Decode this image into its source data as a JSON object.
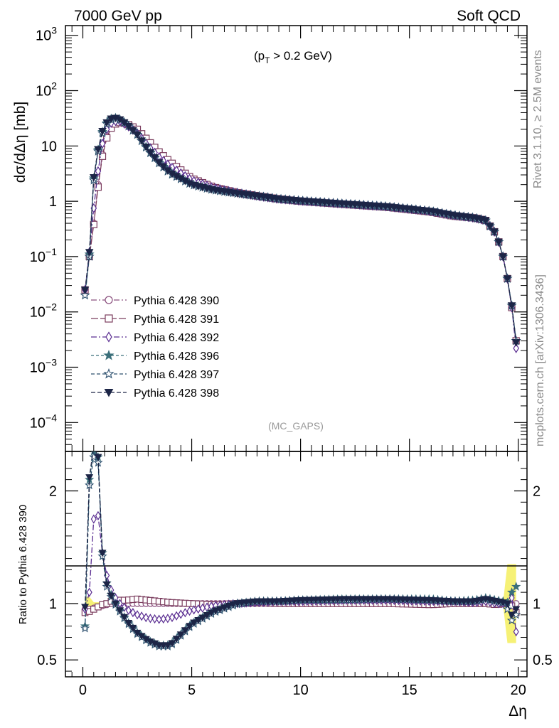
{
  "header": {
    "left": "7000 GeV pp",
    "right": "Soft QCD"
  },
  "side": {
    "rivet": "Rivet 3.1.10, ≥ 2.5M events",
    "mcplots": "mcplots.cern.ch [arXiv:1306.3436]"
  },
  "annotations": {
    "cut": "(p_T > 0.2 GeV)",
    "cut_main": "(p",
    "cut_sub": "T",
    "cut_rest": " > 0.2 GeV)",
    "analysis": "(MC_GAPS)"
  },
  "chart_data": {
    "type": "line",
    "title": "",
    "xlabel": "Δη",
    "ylabel": "dσ/dΔη [mb]",
    "ratio_ylabel": "Ratio to Pythia 6.428 390",
    "xlim": [
      -0.8,
      20.4
    ],
    "ylim": [
      3e-05,
      1500
    ],
    "ratio_ylim": [
      0.35,
      2.35
    ],
    "yscale": "log",
    "x_ticks": [
      0,
      5,
      10,
      15,
      20
    ],
    "x_tick_labels": [
      "0",
      "5",
      "10",
      "15",
      "20"
    ],
    "y_ticks": [
      0.0001,
      0.001,
      0.01,
      0.1,
      1,
      10,
      100,
      1000
    ],
    "y_tick_labels": [
      {
        "base": "10",
        "exp": "−4"
      },
      {
        "base": "10",
        "exp": "−3"
      },
      {
        "base": "10",
        "exp": "−2"
      },
      {
        "base": "10",
        "exp": "−1"
      },
      {
        "base": "1",
        "exp": ""
      },
      {
        "base": "10",
        "exp": ""
      },
      {
        "base": "10",
        "exp": "2"
      },
      {
        "base": "10",
        "exp": "3"
      }
    ],
    "ratio_ticks": [
      0.5,
      1,
      2
    ],
    "ratio_tick_labels": [
      "0.5",
      "1",
      "2"
    ],
    "legend_position": "lower-left",
    "reference_band_color": "#f5f067",
    "x": [
      0.1,
      0.3,
      0.5,
      0.7,
      0.9,
      1.1,
      1.3,
      1.5,
      1.7,
      2.0,
      2.5,
      3.0,
      3.5,
      4.0,
      5.0,
      6.0,
      7.0,
      8.0,
      9.0,
      10.0,
      12.0,
      14.0,
      16.0,
      17.0,
      18.0,
      18.5,
      19.0,
      19.3,
      19.5,
      19.7,
      19.9
    ],
    "series": [
      {
        "name": "Pythia 6.428 390",
        "color": "#8a4f7d",
        "marker": "circle-open",
        "dash": "8,3,2,3",
        "values": [
          0.025,
          0.1,
          0.4,
          2.0,
          7.0,
          15,
          22,
          26,
          27,
          25,
          19,
          12,
          7.5,
          5.0,
          2.6,
          1.8,
          1.45,
          1.25,
          1.1,
          1.0,
          0.88,
          0.78,
          0.65,
          0.55,
          0.5,
          0.45,
          0.25,
          0.1,
          0.04,
          0.012,
          0.003
        ],
        "ratio": [
          0.95,
          0.95,
          0.96,
          0.97,
          0.98,
          0.99,
          1.0,
          1.0,
          1.0,
          1.0,
          1.0,
          1.0,
          1.0,
          1.0,
          1.0,
          1.0,
          1.0,
          1.0,
          1.0,
          1.0,
          1.0,
          1.0,
          1.0,
          1.0,
          1.0,
          1.0,
          1.0,
          1.0,
          1.0,
          1.0,
          1.0
        ]
      },
      {
        "name": "Pythia 6.428 391",
        "color": "#7b3d5e",
        "marker": "square-open",
        "dash": "10,3",
        "values": [
          0.025,
          0.1,
          0.38,
          1.8,
          6.5,
          14,
          21,
          25,
          26.5,
          25.5,
          20,
          12.5,
          7.8,
          5.2,
          2.6,
          1.8,
          1.45,
          1.25,
          1.1,
          1.0,
          0.88,
          0.78,
          0.64,
          0.54,
          0.5,
          0.45,
          0.25,
          0.1,
          0.04,
          0.012,
          0.003
        ],
        "ratio": [
          0.92,
          0.93,
          0.95,
          0.97,
          0.99,
          1.0,
          1.02,
          1.03,
          1.03,
          1.03,
          1.04,
          1.03,
          1.02,
          1.01,
          1.0,
          0.99,
          1.0,
          1.01,
          1.0,
          1.0,
          1.0,
          1.0,
          0.99,
          1.0,
          1.0,
          1.0,
          0.99,
          1.0,
          1.0,
          0.98,
          0.92
        ]
      },
      {
        "name": "Pythia 6.428 392",
        "color": "#5a2d91",
        "marker": "diamond-open",
        "dash": "8,3,2,3",
        "values": [
          0.025,
          0.12,
          0.75,
          3.5,
          11,
          20,
          26,
          28,
          28,
          24,
          17,
          10,
          6.3,
          4.3,
          2.4,
          1.75,
          1.45,
          1.25,
          1.1,
          1.02,
          0.9,
          0.8,
          0.66,
          0.56,
          0.5,
          0.45,
          0.25,
          0.1,
          0.04,
          0.012,
          0.0022
        ],
        "ratio": [
          0.95,
          1.1,
          1.75,
          1.78,
          1.45,
          1.25,
          1.12,
          1.05,
          1.0,
          0.95,
          0.9,
          0.87,
          0.86,
          0.87,
          0.94,
          0.98,
          1.0,
          1.01,
          1.02,
          1.02,
          1.03,
          1.03,
          1.02,
          1.02,
          1.01,
          1.02,
          1.0,
          1.0,
          1.0,
          1.05,
          0.75
        ]
      },
      {
        "name": "Pythia 6.428 396",
        "color": "#3b6f7a",
        "marker": "star-filled",
        "dash": "4,3",
        "values": [
          0.02,
          0.11,
          2.6,
          8.5,
          18,
          26,
          31,
          32,
          30,
          25,
          16,
          8.5,
          5.0,
          3.3,
          2.0,
          1.6,
          1.4,
          1.25,
          1.1,
          1.02,
          0.9,
          0.8,
          0.66,
          0.56,
          0.5,
          0.45,
          0.25,
          0.1,
          0.04,
          0.013,
          0.003
        ],
        "ratio": [
          0.8,
          2.1,
          2.35,
          2.3,
          1.45,
          1.18,
          1.08,
          1.0,
          0.94,
          0.85,
          0.74,
          0.67,
          0.63,
          0.63,
          0.82,
          0.93,
          1.0,
          1.02,
          1.02,
          1.03,
          1.04,
          1.04,
          1.04,
          1.02,
          1.03,
          1.05,
          1.03,
          1.02,
          1.01,
          1.1,
          1.15
        ]
      },
      {
        "name": "Pythia 6.428 397",
        "color": "#2c4f6e",
        "marker": "star-open",
        "dash": "5,3",
        "values": [
          0.02,
          0.1,
          2.4,
          8.0,
          17,
          25,
          30,
          31.5,
          30,
          25,
          16,
          8.3,
          4.9,
          3.2,
          2.0,
          1.6,
          1.4,
          1.24,
          1.1,
          1.02,
          0.9,
          0.8,
          0.66,
          0.56,
          0.5,
          0.45,
          0.25,
          0.1,
          0.04,
          0.013,
          0.003
        ],
        "ratio": [
          0.78,
          2.05,
          2.3,
          2.25,
          1.42,
          1.15,
          1.06,
          0.99,
          0.93,
          0.84,
          0.73,
          0.66,
          0.62,
          0.62,
          0.81,
          0.92,
          0.99,
          1.02,
          1.02,
          1.03,
          1.03,
          1.04,
          1.03,
          1.02,
          1.02,
          1.04,
          1.02,
          1.01,
          0.95,
          0.85,
          0.9
        ]
      },
      {
        "name": "Pythia 6.428 398",
        "color": "#1c2546",
        "marker": "triangle-down-filled",
        "dash": "6,3",
        "values": [
          0.025,
          0.12,
          2.7,
          8.7,
          18.5,
          26.5,
          31,
          32,
          30,
          25,
          16,
          8.5,
          5.0,
          3.3,
          2.0,
          1.6,
          1.4,
          1.25,
          1.1,
          1.02,
          0.9,
          0.8,
          0.66,
          0.56,
          0.5,
          0.45,
          0.25,
          0.1,
          0.04,
          0.013,
          0.0028
        ],
        "ratio": [
          0.97,
          2.12,
          2.4,
          2.3,
          1.45,
          1.17,
          1.07,
          1.0,
          0.94,
          0.85,
          0.74,
          0.67,
          0.63,
          0.63,
          0.82,
          0.93,
          1.0,
          1.02,
          1.02,
          1.03,
          1.04,
          1.04,
          1.03,
          1.02,
          1.02,
          1.04,
          1.02,
          1.01,
          1.0,
          0.9,
          0.95
        ]
      }
    ]
  }
}
